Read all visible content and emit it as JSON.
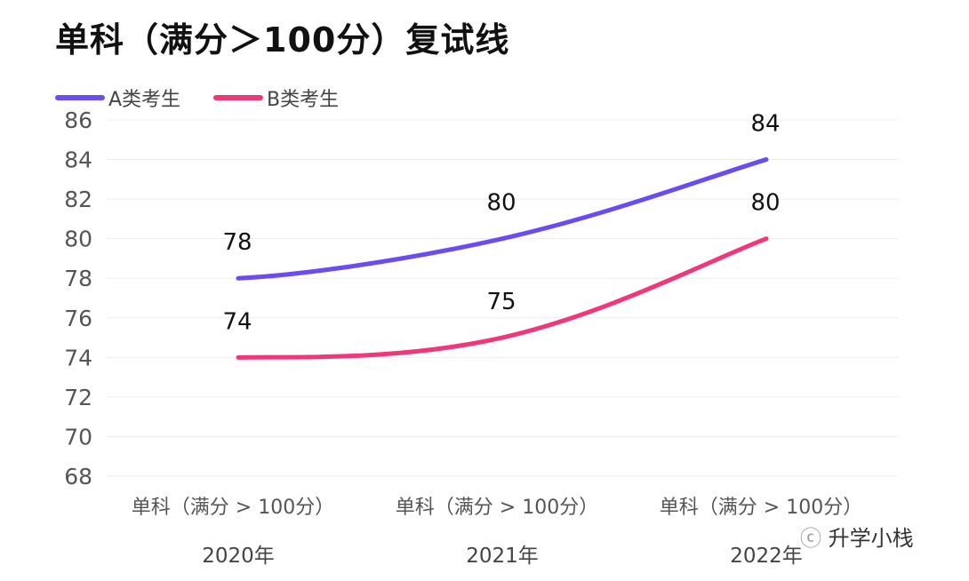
{
  "chart_data": {
    "type": "line",
    "title": "单科（满分＞100分）复试线",
    "categories": [
      "单科（满分 > 100分）",
      "单科（满分 > 100分）",
      "单科（满分 > 100分）"
    ],
    "group_labels": [
      "2020年",
      "2021年",
      "2022年"
    ],
    "series": [
      {
        "name": "A类考生",
        "values": [
          78,
          80,
          84
        ],
        "color": "#6a4cf0"
      },
      {
        "name": "B类考生",
        "values": [
          74,
          75,
          80
        ],
        "color": "#f0377a"
      }
    ],
    "ylim": [
      68,
      86
    ],
    "yticks": [
      68,
      70,
      72,
      74,
      76,
      78,
      80,
      82,
      84,
      86
    ],
    "grid": true,
    "legend": "top-left",
    "smooth": true
  },
  "watermark": "升学小栈"
}
